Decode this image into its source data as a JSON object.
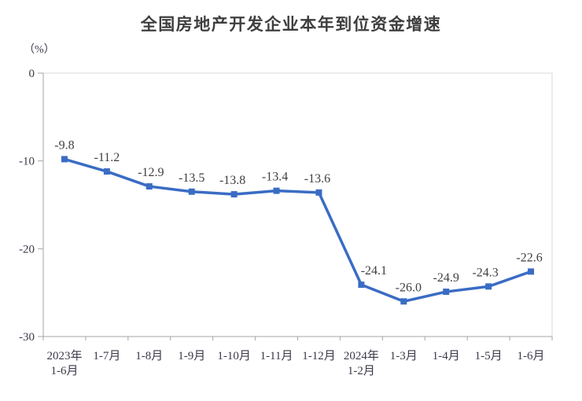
{
  "chart_data": {
    "type": "line",
    "title": "全国房地产开发企业本年到位资金增速",
    "unit_label": "（%）",
    "categories": [
      "2023年\n1-6月",
      "1-7月",
      "1-8月",
      "1-9月",
      "1-10月",
      "1-11月",
      "1-12月",
      "2024年\n1-2月",
      "1-3月",
      "1-4月",
      "1-5月",
      "1-6月"
    ],
    "values": [
      -9.8,
      -11.2,
      -12.9,
      -13.5,
      -13.8,
      -13.4,
      -13.6,
      -24.1,
      -26.0,
      -24.9,
      -24.3,
      -22.6
    ],
    "point_labels": [
      "-9.8",
      "-11.2",
      "-12.9",
      "-13.5",
      "-13.8",
      "-13.4",
      "-13.6",
      "-24.1",
      "-26.0",
      "-24.9",
      "-24.3",
      "-22.6"
    ],
    "xlabel": "",
    "ylabel": "",
    "ylim": [
      -30,
      0
    ],
    "yticks": [
      0,
      -10,
      -20,
      -30
    ],
    "grid": false,
    "legend": false,
    "marker": "square",
    "line_color": "#3a6cc4",
    "axis_color": "#a6a6a6",
    "plot_border_color": "#d9d9d9",
    "tick_label_color": "#3a3a4a",
    "data_label_color": "#404040",
    "title_color": "#3e3e3e",
    "background_color": "#ffffff"
  }
}
